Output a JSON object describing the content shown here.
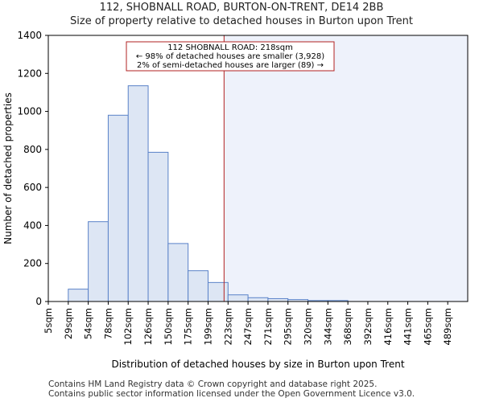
{
  "header": {
    "title_line1": "112, SHOBNALL ROAD, BURTON-ON-TRENT, DE14 2BB",
    "title_line2": "Size of property relative to detached houses in Burton upon Trent"
  },
  "chart_data": {
    "type": "bar",
    "title": "Size of property relative to detached houses in Burton upon Trent",
    "xlabel": "Distribution of detached houses by size in Burton upon Trent",
    "ylabel": "Number of detached properties",
    "ylim": [
      0,
      1400
    ],
    "yticks": [
      0,
      200,
      400,
      600,
      800,
      1000,
      1200,
      1400
    ],
    "grid": false,
    "categories": [
      "5sqm",
      "29sqm",
      "54sqm",
      "78sqm",
      "102sqm",
      "126sqm",
      "150sqm",
      "175sqm",
      "199sqm",
      "223sqm",
      "247sqm",
      "271sqm",
      "295sqm",
      "320sqm",
      "344sqm",
      "368sqm",
      "392sqm",
      "416sqm",
      "441sqm",
      "465sqm",
      "489sqm"
    ],
    "values": [
      0,
      65,
      420,
      980,
      1135,
      785,
      305,
      162,
      100,
      35,
      20,
      15,
      10,
      5,
      5,
      0,
      0,
      0,
      0,
      0,
      0
    ],
    "marker": {
      "value_sqm": 218,
      "bin_position": 8.8,
      "color": "#b22222"
    },
    "colors": {
      "bar_fill": "#dde6f4",
      "bar_stroke": "#5a82c8",
      "highlight_fill": "#eef2fb"
    },
    "annotation": {
      "line1": "112 SHOBNALL ROAD: 218sqm",
      "line2": "← 98% of detached houses are smaller (3,928)",
      "line3": "2% of semi-detached houses are larger (89) →"
    }
  },
  "footer": {
    "line1": "Contains HM Land Registry data © Crown copyright and database right 2025.",
    "line2": "Contains public sector information licensed under the Open Government Licence v3.0."
  }
}
